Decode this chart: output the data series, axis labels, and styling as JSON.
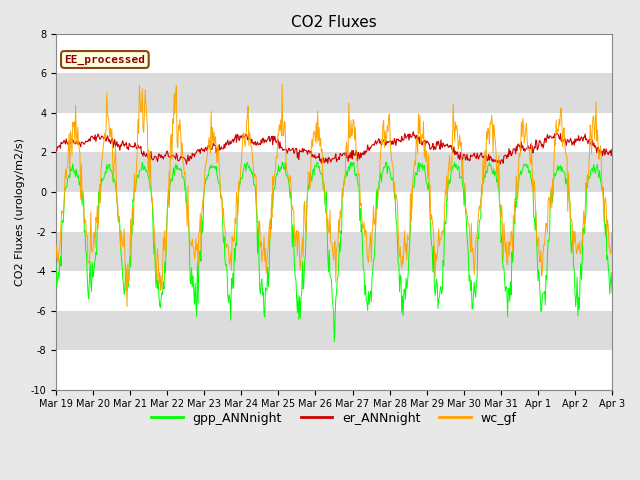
{
  "title": "CO2 Fluxes",
  "ylabel": "CO2 Fluxes (urology/m2/s)",
  "ylim": [
    -10,
    8
  ],
  "yticks": [
    -10,
    -8,
    -6,
    -4,
    -2,
    0,
    2,
    4,
    6,
    8
  ],
  "date_labels": [
    "Mar 19",
    "Mar 20",
    "Mar 21",
    "Mar 22",
    "Mar 23",
    "Mar 24",
    "Mar 25",
    "Mar 26",
    "Mar 27",
    "Mar 28",
    "Mar 29",
    "Mar 30",
    "Mar 31",
    "Apr 1",
    "Apr 2",
    "Apr 3"
  ],
  "legend_labels": [
    "gpp_ANNnight",
    "er_ANNnight",
    "wc_gf"
  ],
  "line_colors": [
    "#00FF00",
    "#CC0000",
    "#FFA500"
  ],
  "annotation_text": "EE_processed",
  "annotation_color": "#8B0000",
  "annotation_bg": "#FFFFE0",
  "background_color": "#E8E8E8",
  "plot_bg_color": "#FFFFFF",
  "gray_band_color": "#DCDCDC",
  "title_fontsize": 11,
  "axis_fontsize": 8,
  "tick_fontsize": 7
}
